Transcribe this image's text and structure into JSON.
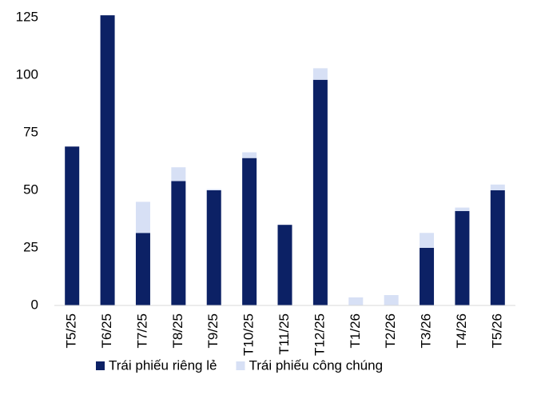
{
  "chart_data": {
    "type": "stacked_bar",
    "categories": [
      "T5/25",
      "T6/25",
      "T7/25",
      "T8/25",
      "T9/25",
      "T10/25",
      "T11/25",
      "T12/25",
      "T1/26",
      "T2/26",
      "T3/26",
      "T4/26",
      "T5/26"
    ],
    "series": [
      {
        "name": "Trái phiếu riêng lẻ",
        "color": "#0c2165",
        "values": [
          69,
          126,
          31.5,
          54,
          50,
          64,
          35,
          98,
          0,
          0,
          25,
          41,
          50
        ]
      },
      {
        "name": "Trái phiếu công chúng",
        "color": "#d7e0f5",
        "values": [
          0,
          0,
          13.5,
          6,
          0.5,
          2.5,
          0,
          5,
          3.5,
          4.5,
          6.5,
          1.5,
          2.5
        ]
      }
    ],
    "ylim": [
      0,
      130
    ],
    "yticks": [
      0,
      25,
      50,
      75,
      100,
      125
    ],
    "grid": false,
    "legend": "bottom"
  }
}
